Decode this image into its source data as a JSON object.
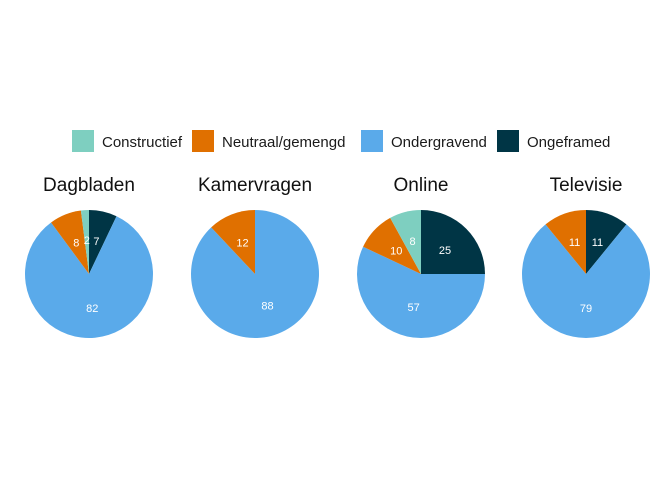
{
  "chart_data": {
    "type": "pie",
    "legend": {
      "placement": "top",
      "entries": [
        {
          "name": "Constructief",
          "color": "#7ecfc0"
        },
        {
          "name": "Neutraal/gemengd",
          "color": "#e07000"
        },
        {
          "name": "Ondergravend",
          "color": "#5aaaea"
        },
        {
          "name": "Ongeframed",
          "color": "#003545"
        }
      ]
    },
    "panels": [
      {
        "title": "Dagbladen",
        "slices": [
          {
            "category": "Ongeframed",
            "value": 7,
            "label": "7"
          },
          {
            "category": "Ondergravend",
            "value": 82,
            "label": "82"
          },
          {
            "category": "Neutraal/gemengd",
            "value": 8,
            "label": "8"
          },
          {
            "category": "Constructief",
            "value": 2,
            "label": "2"
          }
        ]
      },
      {
        "title": "Kamervragen",
        "slices": [
          {
            "category": "Ondergravend",
            "value": 88,
            "label": "88"
          },
          {
            "category": "Neutraal/gemengd",
            "value": 12,
            "label": "12"
          }
        ]
      },
      {
        "title": "Online",
        "slices": [
          {
            "category": "Ongeframed",
            "value": 25,
            "label": "25"
          },
          {
            "category": "Ondergravend",
            "value": 57,
            "label": "57"
          },
          {
            "category": "Neutraal/gemengd",
            "value": 10,
            "label": "10"
          },
          {
            "category": "Constructief",
            "value": 8,
            "label": "8"
          }
        ]
      },
      {
        "title": "Televisie",
        "slices": [
          {
            "category": "Ongeframed",
            "value": 11,
            "label": "11"
          },
          {
            "category": "Ondergravend",
            "value": 79,
            "label": "79"
          },
          {
            "category": "Neutraal/gemengd",
            "value": 11,
            "label": "11"
          }
        ]
      }
    ]
  }
}
